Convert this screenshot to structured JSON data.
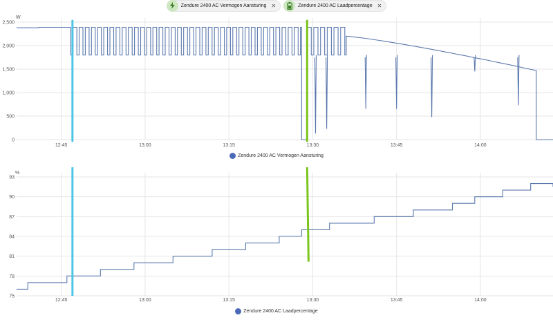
{
  "chips": [
    {
      "label": "Zendure 2400 AC Vermogen Aansturing",
      "icon": "lightning-bolt-icon",
      "close": "✕"
    },
    {
      "label": "Zendure 2400 AC Laadpercentage",
      "icon": "battery-icon",
      "close": "✕"
    }
  ],
  "colors": {
    "series": "#5a78ad",
    "grid": "#e6e6e6",
    "cyan_marker": "#4ec4e6",
    "green_marker": "#7cc51d",
    "chip_icon_bg": "#cde7c1",
    "chip_icon_fg": "#3e7d2a"
  },
  "chart_data": [
    {
      "type": "line",
      "unit": "W",
      "legend": "Zendure 2400 AC Vermogen Aansturing",
      "yticks": [
        0,
        500,
        1000,
        1500,
        2000,
        2500
      ],
      "ytick_labels": [
        "0",
        "500",
        "1,000",
        "1,500",
        "2,000",
        "2,500"
      ],
      "ylim": [
        0,
        2500
      ],
      "xticks": [
        "12:45",
        "13:00",
        "13:15",
        "13:30",
        "13:45",
        "14:00"
      ],
      "xlim": [
        "12:37",
        "14:13"
      ],
      "markers": [
        {
          "time": "12:47",
          "color": "cyan_marker"
        },
        {
          "time": "13:29",
          "color": "green_marker"
        }
      ],
      "segments": [
        {
          "from": "12:37",
          "to": "12:41",
          "value": 2380
        },
        {
          "from": "12:41",
          "to": "12:46",
          "value": 2390
        },
        {
          "from": "12:46",
          "to": "13:28",
          "pattern": "square",
          "high": 2390,
          "low": 1800,
          "period_min": 1.1
        },
        {
          "from": "13:28",
          "to": "13:29",
          "value": 0
        },
        {
          "from": "13:29",
          "to": "13:36",
          "pattern": "square",
          "high": 2390,
          "low": 1800,
          "period_min": 1.2
        },
        {
          "from": "13:36",
          "to": "14:10",
          "value_start": 2200,
          "value_end": 1470
        },
        {
          "from": "14:10",
          "to": "14:13",
          "value": 0
        }
      ],
      "dips": [
        {
          "time": "13:30.5",
          "value": 130
        },
        {
          "time": "13:32.5",
          "value": 230
        },
        {
          "time": "13:39.5",
          "value": 650
        },
        {
          "time": "13:45",
          "value": 650
        },
        {
          "time": "13:51.3",
          "value": 480
        },
        {
          "time": "13:59",
          "value": 1450
        },
        {
          "time": "14:06.8",
          "value": 730
        }
      ]
    },
    {
      "type": "line",
      "unit": "%",
      "legend": "Zendure 2400 AC Laadpercentage",
      "yticks": [
        75,
        78,
        81,
        84,
        87,
        90,
        93
      ],
      "ylim": [
        75,
        93
      ],
      "xticks": [
        "12:45",
        "13:00",
        "13:15",
        "13:30",
        "13:45",
        "14:00"
      ],
      "xlim": [
        "12:37",
        "14:13"
      ],
      "markers": [
        {
          "time": "12:47",
          "color": "cyan_marker"
        },
        {
          "time": "13:29",
          "color": "green_marker"
        }
      ],
      "steps": [
        {
          "time": "12:37",
          "value": 76
        },
        {
          "time": "12:39",
          "value": 77
        },
        {
          "time": "12:46",
          "value": 78
        },
        {
          "time": "12:52",
          "value": 79
        },
        {
          "time": "12:58",
          "value": 80
        },
        {
          "time": "13:05",
          "value": 81
        },
        {
          "time": "13:12",
          "value": 82
        },
        {
          "time": "13:18",
          "value": 83
        },
        {
          "time": "13:24",
          "value": 84
        },
        {
          "time": "13:28",
          "value": 85
        },
        {
          "time": "13:33",
          "value": 86
        },
        {
          "time": "13:41",
          "value": 87
        },
        {
          "time": "13:48",
          "value": 88
        },
        {
          "time": "13:55",
          "value": 89
        },
        {
          "time": "13:59",
          "value": 90
        },
        {
          "time": "14:04",
          "value": 91
        },
        {
          "time": "14:09",
          "value": 92
        },
        {
          "time": "14:13",
          "value": 91.5
        }
      ]
    }
  ]
}
